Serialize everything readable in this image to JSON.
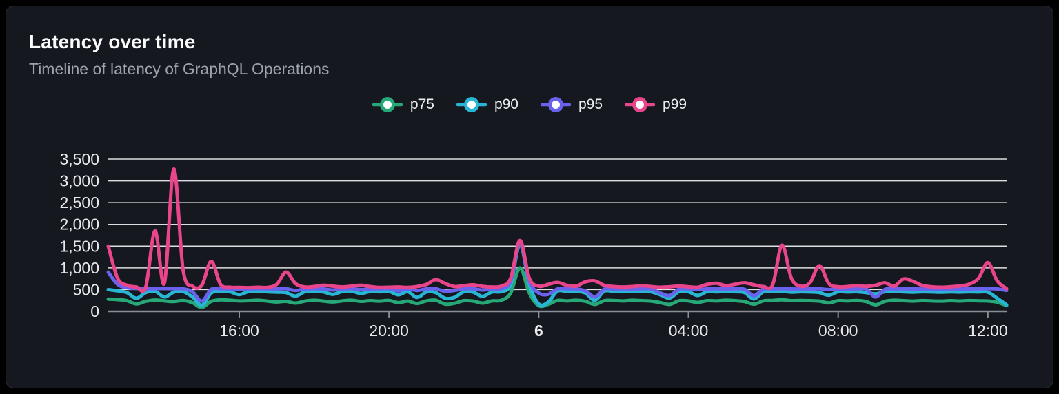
{
  "header": {
    "title": "Latency over time",
    "subtitle": "Timeline of latency of GraphQL Operations"
  },
  "legend": {
    "items": [
      {
        "label": "p75",
        "color": "#26A878"
      },
      {
        "label": "p90",
        "color": "#29B6D4"
      },
      {
        "label": "p95",
        "color": "#6A62EC"
      },
      {
        "label": "p99",
        "color": "#E8458B"
      }
    ]
  },
  "colors": {
    "background": "#000000",
    "card": "#15181E",
    "card_border": "#2A2F37",
    "grid": "#E7E9EC",
    "axis": "#8B8E94",
    "tick_label": "#E8EAED",
    "text_primary": "#FAFBFC",
    "text_secondary": "#9CA3AD"
  },
  "chart_data": {
    "type": "line",
    "title": "Latency over time",
    "subtitle": "Timeline of latency of GraphQL Operations",
    "legend_position": "top-center",
    "grid": true,
    "x_axis": {
      "kind": "time",
      "points": 97,
      "step_minutes": 15,
      "ticks": [
        {
          "index": 14,
          "label": "16:00",
          "bold": false
        },
        {
          "index": 30,
          "label": "20:00",
          "bold": false
        },
        {
          "index": 46,
          "label": "6",
          "bold": true
        },
        {
          "index": 62,
          "label": "04:00",
          "bold": false
        },
        {
          "index": 78,
          "label": "08:00",
          "bold": false
        },
        {
          "index": 94,
          "label": "12:00",
          "bold": false
        }
      ]
    },
    "y_axis": {
      "min": 0,
      "max": 3500,
      "ticks": [
        {
          "value": 0,
          "label": "0"
        },
        {
          "value": 500,
          "label": "500"
        },
        {
          "value": 1000,
          "label": "1,000"
        },
        {
          "value": 1500,
          "label": "1,500"
        },
        {
          "value": 2000,
          "label": "2,000"
        },
        {
          "value": 2500,
          "label": "2,500"
        },
        {
          "value": 3000,
          "label": "3,000"
        },
        {
          "value": 3500,
          "label": "3,500"
        }
      ]
    },
    "series": [
      {
        "name": "p75",
        "color": "#26A878",
        "values": [
          280,
          270,
          245,
          170,
          230,
          260,
          240,
          225,
          250,
          200,
          90,
          230,
          265,
          255,
          240,
          245,
          255,
          235,
          215,
          230,
          190,
          235,
          255,
          235,
          215,
          240,
          255,
          230,
          245,
          235,
          250,
          200,
          235,
          180,
          240,
          255,
          165,
          185,
          245,
          235,
          190,
          240,
          255,
          420,
          1000,
          420,
          130,
          160,
          250,
          240,
          255,
          230,
          160,
          245,
          250,
          240,
          255,
          245,
          235,
          200,
          160,
          245,
          240,
          205,
          245,
          240,
          255,
          245,
          225,
          165,
          240,
          250,
          265,
          245,
          250,
          245,
          235,
          195,
          245,
          240,
          250,
          225,
          150,
          230,
          255,
          245,
          235,
          248,
          240,
          235,
          245,
          238,
          248,
          242,
          238,
          210,
          130
        ]
      },
      {
        "name": "p90",
        "color": "#29B6D4",
        "values": [
          500,
          470,
          430,
          300,
          430,
          460,
          330,
          440,
          455,
          330,
          140,
          420,
          460,
          450,
          385,
          455,
          465,
          450,
          440,
          430,
          350,
          450,
          465,
          445,
          390,
          455,
          465,
          410,
          455,
          450,
          458,
          380,
          450,
          320,
          445,
          430,
          300,
          320,
          450,
          440,
          345,
          445,
          455,
          620,
          1550,
          620,
          170,
          210,
          465,
          455,
          462,
          420,
          255,
          465,
          458,
          450,
          460,
          452,
          448,
          380,
          305,
          455,
          448,
          365,
          452,
          448,
          458,
          450,
          430,
          285,
          448,
          452,
          462,
          440,
          450,
          445,
          430,
          370,
          450,
          445,
          450,
          430,
          400,
          450,
          455,
          448,
          440,
          450,
          445,
          440,
          448,
          442,
          450,
          445,
          440,
          300,
          150
        ]
      },
      {
        "name": "p95",
        "color": "#6A62EC",
        "values": [
          900,
          620,
          545,
          525,
          518,
          520,
          525,
          520,
          518,
          450,
          235,
          505,
          520,
          518,
          515,
          518,
          520,
          518,
          515,
          520,
          480,
          515,
          520,
          515,
          490,
          515,
          520,
          500,
          515,
          518,
          520,
          470,
          515,
          480,
          515,
          518,
          460,
          480,
          515,
          518,
          490,
          515,
          520,
          700,
          1580,
          700,
          420,
          390,
          515,
          518,
          515,
          470,
          330,
          510,
          515,
          518,
          515,
          518,
          515,
          420,
          365,
          510,
          515,
          500,
          515,
          518,
          515,
          518,
          505,
          360,
          512,
          515,
          520,
          515,
          512,
          515,
          518,
          500,
          515,
          512,
          515,
          510,
          330,
          505,
          515,
          518,
          515,
          512,
          515,
          512,
          515,
          512,
          515,
          518,
          520,
          515,
          480
        ]
      },
      {
        "name": "p99",
        "color": "#E8458B",
        "values": [
          1500,
          760,
          600,
          560,
          555,
          1850,
          650,
          3270,
          950,
          580,
          600,
          1150,
          620,
          555,
          550,
          545,
          555,
          550,
          620,
          900,
          640,
          560,
          570,
          600,
          580,
          560,
          580,
          600,
          570,
          550,
          555,
          560,
          550,
          570,
          620,
          730,
          640,
          570,
          590,
          610,
          575,
          560,
          580,
          760,
          1630,
          760,
          580,
          620,
          665,
          600,
          580,
          680,
          700,
          600,
          570,
          560,
          570,
          590,
          570,
          555,
          565,
          580,
          565,
          555,
          620,
          645,
          590,
          625,
          655,
          610,
          570,
          610,
          1520,
          760,
          580,
          660,
          1050,
          640,
          565,
          570,
          590,
          575,
          600,
          655,
          580,
          745,
          690,
          595,
          565,
          555,
          565,
          585,
          625,
          760,
          1120,
          700,
          520
        ]
      }
    ]
  }
}
